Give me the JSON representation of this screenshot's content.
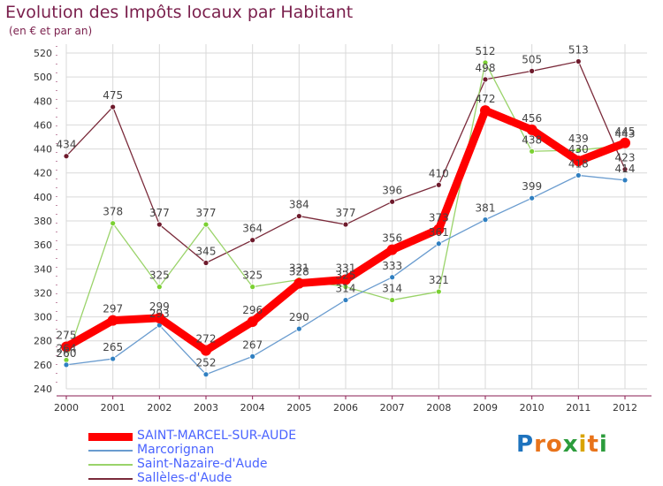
{
  "title": "Evolution des Impôts locaux par Habitant",
  "subtitle": "(en € et par an)",
  "logo": {
    "text": "Proxiti",
    "letters": [
      "P",
      "r",
      "o",
      "x",
      "i",
      "t",
      "i"
    ],
    "colors": [
      "#1e73be",
      "#e8731a",
      "#e8731a",
      "#2c9c3c",
      "#d9a400",
      "#e8731a",
      "#2c9c3c"
    ]
  },
  "colors": {
    "background": "#ffffff",
    "grid": "#d9d9d9",
    "axis": "#8a1d52",
    "tick_label": "#333333",
    "point_label": "#444444",
    "legend_text": "#4a63ff"
  },
  "chart_data": {
    "type": "line",
    "title": "Evolution des Impôts locaux par Habitant",
    "ylabel": "(en € et par an)",
    "xlabel": "",
    "x": [
      "2000",
      "2001",
      "2002",
      "2003",
      "2004",
      "2005",
      "2006",
      "2007",
      "2008",
      "2009",
      "2010",
      "2011",
      "2012"
    ],
    "ylim": [
      240,
      520
    ],
    "yticks": [
      240,
      260,
      280,
      300,
      320,
      340,
      360,
      380,
      400,
      420,
      440,
      460,
      480,
      500,
      520
    ],
    "grid": true,
    "series": [
      {
        "name": "SAINT-MARCEL-SUR-AUDE",
        "color": "#ff0000",
        "marker": "#ff0000",
        "highlight": true,
        "values": [
          275,
          297,
          299,
          272,
          296,
          328,
          331,
          356,
          373,
          472,
          456,
          430,
          445
        ]
      },
      {
        "name": "Marcorignan",
        "color": "#6a9ccf",
        "marker": "#2f7fc1",
        "values": [
          260,
          265,
          293,
          252,
          267,
          290,
          314,
          333,
          361,
          381,
          399,
          418,
          414
        ]
      },
      {
        "name": "Saint-Nazaire-d'Aude",
        "color": "#9ad36a",
        "marker": "#7bd132",
        "values": [
          264,
          378,
          325,
          377,
          325,
          331,
          325,
          314,
          321,
          512,
          438,
          439,
          443
        ]
      },
      {
        "name": "Sallèles-d'Aude",
        "color": "#7a2a3a",
        "marker": "#6e1a2c",
        "values": [
          434,
          475,
          377,
          345,
          364,
          384,
          377,
          396,
          410,
          498,
          505,
          513,
          423
        ]
      }
    ]
  }
}
